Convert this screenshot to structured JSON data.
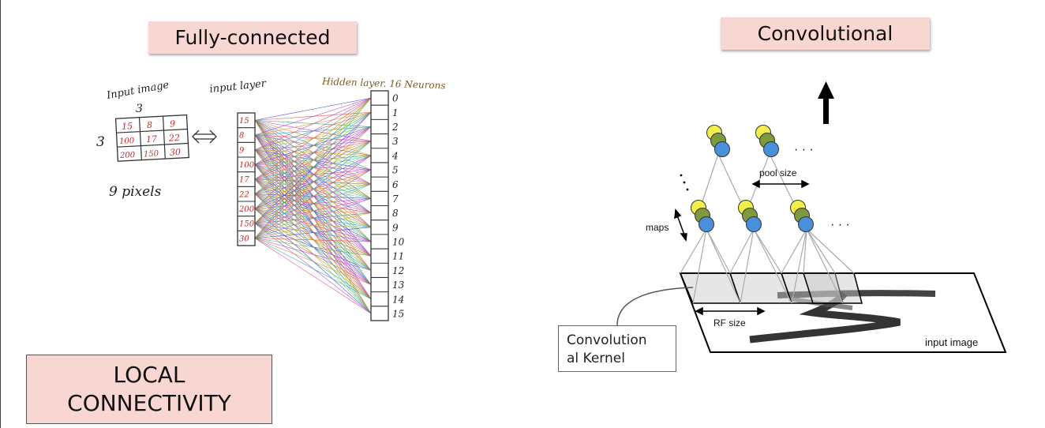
{
  "left_panel": {
    "title": "Fully-connected",
    "input_image_label": "Input image",
    "grid_top_label": "3",
    "grid_side_label": "3",
    "grid_values": [
      "15",
      "8",
      "9",
      "100",
      "17",
      "22",
      "200",
      "150",
      "30"
    ],
    "pixels_label": "9 pixels",
    "input_layer_label": "input layer",
    "input_values": [
      "15",
      "8",
      "9",
      "100",
      "17",
      "22",
      "200",
      "150",
      "30"
    ],
    "hidden_label": "Hidden layer. 16 Neurons",
    "hidden_indices": [
      "0",
      "1",
      "2",
      "3",
      "4",
      "5",
      "6",
      "7",
      "8",
      "9",
      "10",
      "11",
      "12",
      "13",
      "14",
      "15"
    ],
    "bottom_label_line1": "LOCAL",
    "bottom_label_line2": "CONNECTIVITY"
  },
  "right_panel": {
    "title": "Convolutional",
    "pool_size_label": "pool size",
    "maps_label": "maps",
    "rf_size_label": "RF size",
    "input_image_label": "input image",
    "ellipsis": "· · ·",
    "kernel_line1": "Convolution",
    "kernel_line2": "al Kernel"
  },
  "colors": {
    "pill_bg": "#f8d7d2",
    "neuron_yellow": "#f2ee4a",
    "neuron_green": "#7d9a3c",
    "neuron_blue": "#4a8fdc",
    "handwriting_red": "#c62828"
  }
}
